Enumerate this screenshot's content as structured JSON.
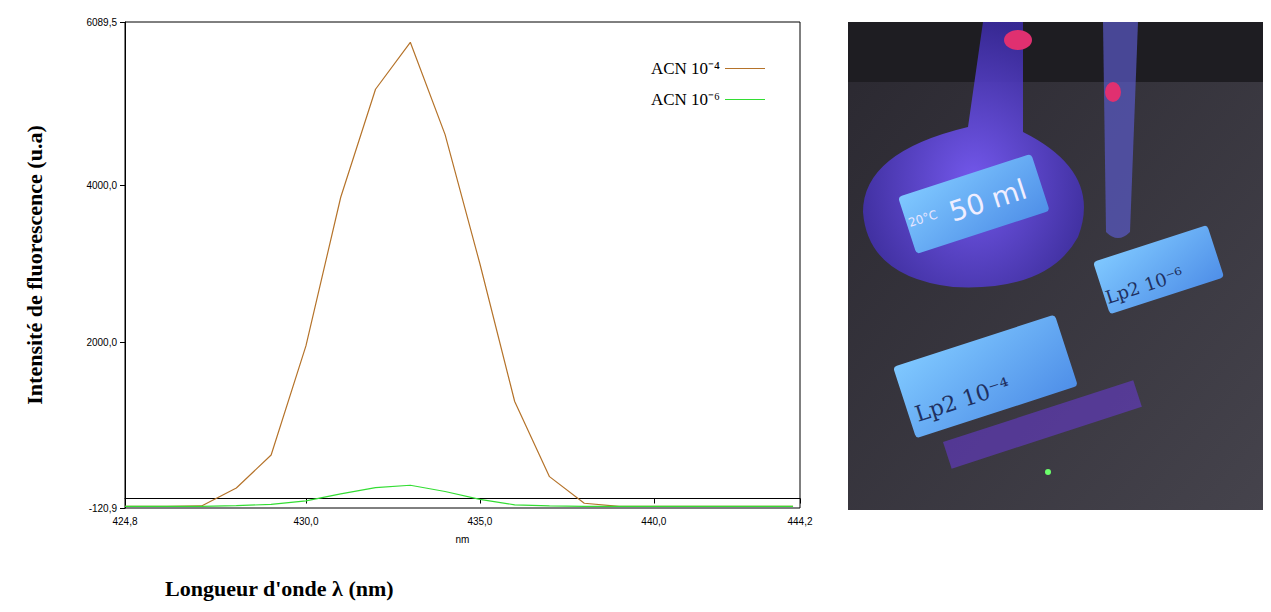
{
  "chart_data": {
    "type": "line",
    "x_label": "Longueur d'onde λ (nm)",
    "x_unit_label": "nm",
    "y_label": "Intensité de fluorescence (u.a)",
    "xlim": [
      424.8,
      444.2
    ],
    "xticks": [
      {
        "value": 424.8,
        "label": "424,8"
      },
      {
        "value": 430,
        "label": "430,0"
      },
      {
        "value": 435,
        "label": "435,0"
      },
      {
        "value": 440,
        "label": "440,0"
      },
      {
        "value": 444.2,
        "label": "444,2"
      }
    ],
    "ylim": [
      -120.9,
      6089.5
    ],
    "yticks": [
      {
        "value": -120.9,
        "label": "-120,9"
      },
      {
        "value": 2000,
        "label": "2000,0"
      },
      {
        "value": 4000,
        "label": "4000,0"
      },
      {
        "value": 6089.5,
        "label": "6089,5"
      }
    ],
    "grid": false,
    "legend": "top-right",
    "x": [
      424.8,
      425,
      426,
      427,
      428,
      429,
      430,
      431,
      432,
      433,
      434,
      435,
      436,
      437,
      438,
      439,
      440,
      441,
      442,
      443,
      444
    ],
    "series": [
      {
        "name": "ACN 10⁻⁴",
        "color": "#b5732a",
        "values": [
          -100,
          -100,
          -100,
          -95,
          135,
          556,
          1950,
          3850,
          5230,
          5830,
          4650,
          3000,
          1240,
          280,
          -60,
          -100,
          -100,
          -100,
          -100,
          -100,
          -100
        ]
      },
      {
        "name": "ACN 10⁻⁶",
        "color": "#33dd33",
        "values": [
          -100,
          -100,
          -100,
          -100,
          -90,
          -75,
          -30,
          60,
          140,
          170,
          90,
          -10,
          -80,
          -95,
          -100,
          -100,
          -100,
          -100,
          -100,
          -100,
          -100
        ]
      }
    ]
  },
  "photo": {
    "flask_label": "50 ml",
    "flask_temp": "20°C",
    "labels": [
      "Lp2 10⁻⁴",
      "Lp2 10⁻⁶"
    ]
  }
}
